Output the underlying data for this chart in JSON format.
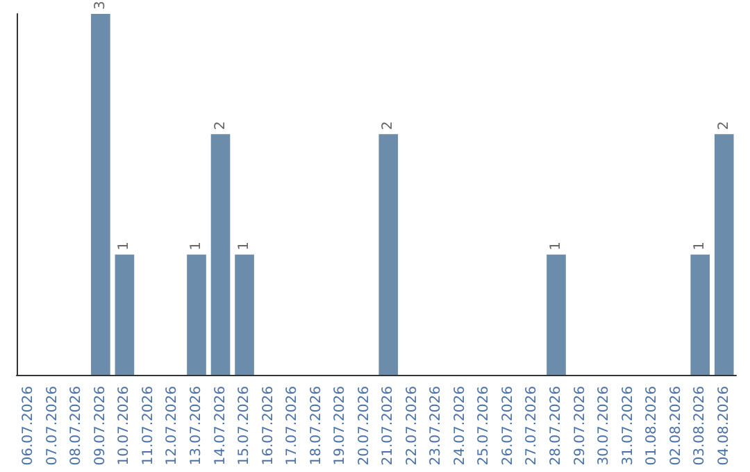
{
  "chart_data": {
    "type": "bar",
    "categories": [
      "06.07.2026",
      "07.07.2026",
      "08.07.2026",
      "09.07.2026",
      "10.07.2026",
      "11.07.2026",
      "12.07.2026",
      "13.07.2026",
      "14.07.2026",
      "15.07.2026",
      "16.07.2026",
      "17.07.2026",
      "18.07.2026",
      "19.07.2026",
      "20.07.2026",
      "21.07.2026",
      "22.07.2026",
      "23.07.2026",
      "24.07.2026",
      "25.07.2026",
      "26.07.2026",
      "27.07.2026",
      "28.07.2026",
      "29.07.2026",
      "30.07.2026",
      "31.07.2026",
      "01.08.2026",
      "02.08.2026",
      "03.08.2026",
      "04.08.2026"
    ],
    "values": [
      0,
      0,
      0,
      3,
      1,
      0,
      0,
      1,
      2,
      1,
      0,
      0,
      0,
      0,
      0,
      2,
      0,
      0,
      0,
      0,
      0,
      0,
      1,
      0,
      0,
      0,
      0,
      0,
      1,
      2
    ],
    "value_labels": [
      null,
      null,
      null,
      "3",
      "1",
      null,
      null,
      "1",
      "2",
      "1",
      null,
      null,
      null,
      null,
      null,
      "2",
      null,
      null,
      null,
      null,
      null,
      null,
      "1",
      null,
      null,
      null,
      null,
      null,
      "1",
      "2"
    ],
    "color": "#6b8caa",
    "tick_labels": "x"
  }
}
